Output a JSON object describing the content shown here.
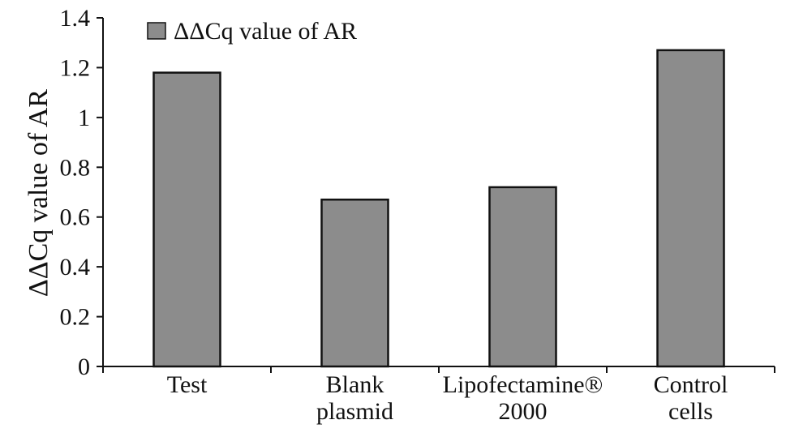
{
  "chart_data": {
    "type": "bar",
    "title": "",
    "xlabel": "",
    "ylabel": "ΔΔCq value of AR",
    "categories": [
      [
        "Test"
      ],
      [
        "Blank",
        "plasmid"
      ],
      [
        "Lipofectamine®",
        "2000"
      ],
      [
        "Control",
        "cells"
      ]
    ],
    "series": [
      {
        "name": "ΔΔCq value of AR",
        "values": [
          1.18,
          0.67,
          0.72,
          1.27
        ],
        "color": "#8c8c8c"
      }
    ],
    "ylim": [
      0,
      1.4
    ],
    "yticks": [
      0,
      0.2,
      0.4,
      0.6,
      0.8,
      1,
      1.2,
      1.4
    ],
    "ytick_labels": [
      "0",
      "0.2",
      "0.4",
      "0.6",
      "0.8",
      "1",
      "1.2",
      "1.4"
    ],
    "grid": false,
    "legend_position": "top-left"
  }
}
